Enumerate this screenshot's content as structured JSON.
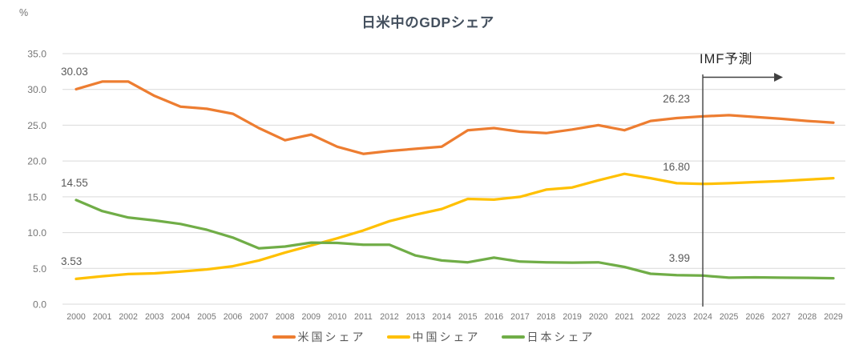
{
  "chart": {
    "percent_label": "%",
    "title": "日米中のGDPシェア"
  },
  "chart_data": {
    "type": "line",
    "title": "日米中のGDPシェア",
    "xlabel": "",
    "ylabel": "%",
    "ylim": [
      0,
      35
    ],
    "grid": true,
    "legend_position": "bottom",
    "y_ticks": [
      "35.0",
      "30.0",
      "25.0",
      "20.0",
      "15.0",
      "10.0",
      "5.0",
      "0.0"
    ],
    "x": [
      2000,
      2001,
      2002,
      2003,
      2004,
      2005,
      2006,
      2007,
      2008,
      2009,
      2010,
      2011,
      2012,
      2013,
      2014,
      2015,
      2016,
      2017,
      2018,
      2019,
      2020,
      2021,
      2022,
      2023,
      2024,
      2025,
      2026,
      2027,
      2028,
      2029
    ],
    "series": [
      {
        "key": "us",
        "name": "米国シェア",
        "color": "#ED7D31",
        "values": [
          30.03,
          31.1,
          31.1,
          29.1,
          27.6,
          27.3,
          26.6,
          24.6,
          22.9,
          23.7,
          22.0,
          21.0,
          21.4,
          21.7,
          22.0,
          24.3,
          24.6,
          24.1,
          23.9,
          24.4,
          25.0,
          24.3,
          25.6,
          26.0,
          26.23,
          26.4,
          26.15,
          25.9,
          25.6,
          25.35
        ]
      },
      {
        "key": "china",
        "name": "中国シェア",
        "color": "#FFC000",
        "values": [
          3.53,
          3.9,
          4.2,
          4.3,
          4.55,
          4.85,
          5.3,
          6.1,
          7.2,
          8.2,
          9.2,
          10.3,
          11.6,
          12.5,
          13.3,
          14.7,
          14.6,
          15.0,
          16.0,
          16.3,
          17.3,
          18.2,
          17.6,
          16.9,
          16.8,
          16.9,
          17.05,
          17.2,
          17.4,
          17.6
        ]
      },
      {
        "key": "japan",
        "name": "日本シェア",
        "color": "#70AD47",
        "values": [
          14.55,
          13.0,
          12.1,
          11.7,
          11.2,
          10.4,
          9.3,
          7.8,
          8.05,
          8.6,
          8.55,
          8.3,
          8.3,
          6.8,
          6.1,
          5.85,
          6.5,
          5.95,
          5.85,
          5.8,
          5.85,
          5.2,
          4.25,
          4.05,
          3.99,
          3.7,
          3.75,
          3.7,
          3.68,
          3.62
        ]
      }
    ],
    "forecast": {
      "label": "IMF予測",
      "start_year": 2024
    },
    "annotations": [
      {
        "key": "us-2000",
        "text": "30.03",
        "year": 2000,
        "value": 30.03
      },
      {
        "key": "japan-2000",
        "text": "14.55",
        "year": 2000,
        "value": 14.55
      },
      {
        "key": "china-2000",
        "text": "3.53",
        "year": 2000,
        "value": 3.53
      },
      {
        "key": "us-2024",
        "text": "26.23",
        "year": 2024,
        "value": 26.23
      },
      {
        "key": "china-2024",
        "text": "16.80",
        "year": 2024,
        "value": 16.8
      },
      {
        "key": "japan-2024",
        "text": "3.99",
        "year": 2024,
        "value": 3.99
      }
    ]
  }
}
